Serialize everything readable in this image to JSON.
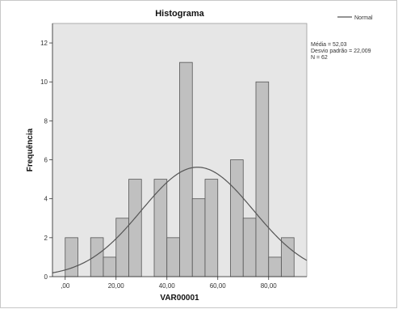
{
  "chart_data": {
    "type": "bar",
    "title": "Histograma",
    "xlabel": "VAR00001",
    "ylabel": "Frequência",
    "xlim": [
      -5,
      95
    ],
    "ylim": [
      0,
      13
    ],
    "x_ticks": [
      0,
      20,
      40,
      60,
      80
    ],
    "x_tick_labels": [
      ",00",
      "20,00",
      "40,00",
      "60,00",
      "80,00"
    ],
    "y_ticks": [
      0,
      2,
      4,
      6,
      8,
      10,
      12
    ],
    "y_tick_labels": [
      "0",
      "2",
      "4",
      "6",
      "8",
      "10",
      "12"
    ],
    "bin_width": 5,
    "bars": [
      {
        "x0": 0,
        "x1": 5,
        "value": 2
      },
      {
        "x0": 10,
        "x1": 15,
        "value": 2
      },
      {
        "x0": 15,
        "x1": 20,
        "value": 1
      },
      {
        "x0": 20,
        "x1": 25,
        "value": 3
      },
      {
        "x0": 25,
        "x1": 30,
        "value": 5
      },
      {
        "x0": 35,
        "x1": 40,
        "value": 5
      },
      {
        "x0": 40,
        "x1": 45,
        "value": 2
      },
      {
        "x0": 45,
        "x1": 50,
        "value": 11
      },
      {
        "x0": 50,
        "x1": 55,
        "value": 4
      },
      {
        "x0": 55,
        "x1": 60,
        "value": 5
      },
      {
        "x0": 65,
        "x1": 70,
        "value": 6
      },
      {
        "x0": 70,
        "x1": 75,
        "value": 3
      },
      {
        "x0": 75,
        "x1": 80,
        "value": 10
      },
      {
        "x0": 80,
        "x1": 85,
        "value": 1
      },
      {
        "x0": 85,
        "x1": 90,
        "value": 2
      }
    ],
    "normal_curve": {
      "mean": 52.03,
      "sd": 22.009,
      "n": 62
    },
    "stats": [
      "Média = 52,03",
      "Desvio padrão = 22,009",
      "N = 62"
    ],
    "legend": [
      {
        "name": "Normal"
      }
    ],
    "legend_position": "top-right",
    "grid": false,
    "colors": {
      "bar_fill": "#c0c0c0",
      "bar_stroke": "#555555",
      "plot_bg": "#e6e6e6",
      "curve": "#555555"
    }
  }
}
